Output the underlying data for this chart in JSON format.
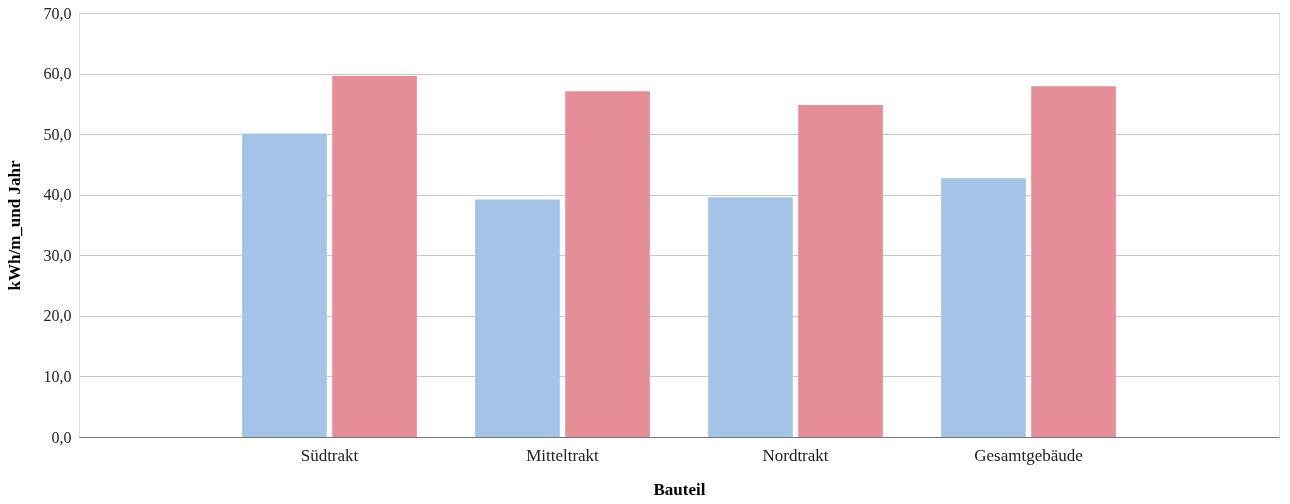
{
  "chart_data": {
    "type": "bar",
    "xlabel": "Bauteil",
    "ylabel": "kWh/m_und Jahr",
    "categories": [
      "Südtrakt",
      "Mitteltrakt",
      "Nordtrakt",
      "Gesamtgebäude"
    ],
    "series": [
      {
        "color": "#a3c4e6",
        "values": [
          50.1,
          39.2,
          39.6,
          42.7
        ]
      },
      {
        "color": "#e58e97",
        "values": [
          59.6,
          57.1,
          54.8,
          57.9
        ]
      }
    ],
    "ylim": [
      0,
      70
    ],
    "yticks": [
      {
        "value": 0,
        "label": "0,0"
      },
      {
        "value": 10,
        "label": "10,0"
      },
      {
        "value": 20,
        "label": "20,0"
      },
      {
        "value": 30,
        "label": "30,0"
      },
      {
        "value": 40,
        "label": "40,0"
      },
      {
        "value": 50,
        "label": "50,0"
      },
      {
        "value": 60,
        "label": "60,0"
      },
      {
        "value": 70,
        "label": "70,0"
      }
    ],
    "grid": "y",
    "legend": false
  }
}
